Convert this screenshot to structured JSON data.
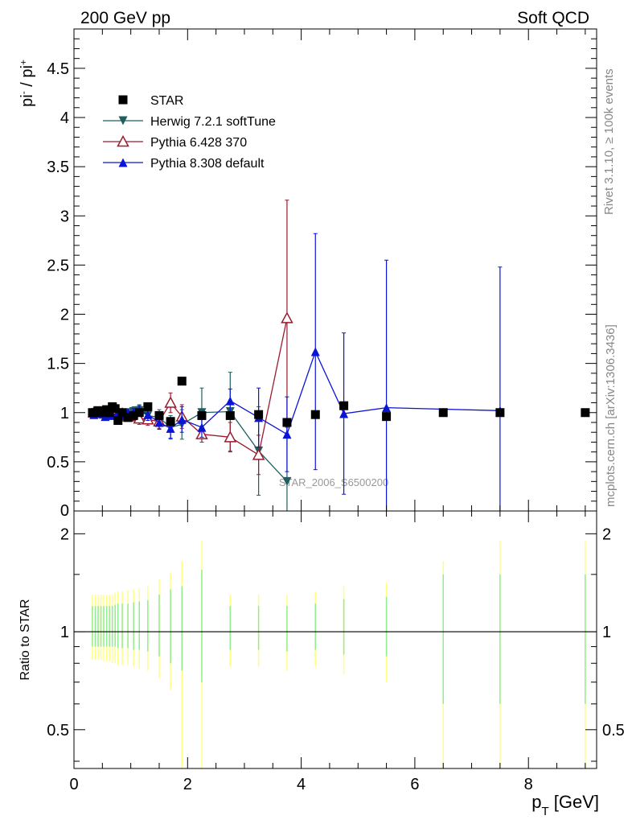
{
  "header": {
    "left": "200 GeV pp",
    "right": "Soft QCD"
  },
  "side_labels": {
    "rivet": "Rivet 3.1.10, ≥ 100k events",
    "mcplots": "mcplots.cern.ch [arXiv:1306.3436]"
  },
  "watermark": "STAR_2006_S6500200",
  "colors": {
    "star": "#000000",
    "herwig": "#1f5f5f",
    "pythia6": "#9b1b2e",
    "pythia8": "#0a14d6",
    "ratio_band_yellow": "#ffff80",
    "ratio_band_green": "#90ee90"
  },
  "chart_data": [
    {
      "type": "scatter",
      "ylabel": "pi- / pi+",
      "xlim": [
        0,
        9.2
      ],
      "ylim": [
        0,
        4.9
      ],
      "yticks": [
        "0.5",
        "1",
        "1.5",
        "2",
        "2.5",
        "3",
        "3.5",
        "4",
        "4.5"
      ],
      "ytick_values": [
        0.5,
        1,
        1.5,
        2,
        2.5,
        3,
        3.5,
        4,
        4.5
      ],
      "bottom_tick_label": "0",
      "legend_position": "top-left",
      "series": [
        {
          "name": "STAR",
          "marker": "square",
          "x": [
            0.325,
            0.375,
            0.425,
            0.475,
            0.525,
            0.575,
            0.625,
            0.675,
            0.725,
            0.775,
            0.85,
            0.95,
            1.05,
            1.15,
            1.3,
            1.5,
            1.7,
            1.9,
            2.25,
            2.75,
            3.25,
            3.75,
            4.25,
            4.75,
            5.5,
            6.5,
            7.5,
            9.0
          ],
          "y": [
            1.0,
            1.0,
            1.02,
            1.01,
            1.0,
            1.03,
            1.0,
            1.06,
            1.04,
            0.92,
            1.0,
            0.95,
            0.97,
            1.0,
            1.06,
            0.97,
            0.91,
            1.32,
            0.97,
            0.97,
            0.98,
            0.9,
            0.98,
            1.07,
            0.96,
            1.0,
            1.0,
            1.0
          ],
          "yerr": [
            0.01,
            0.01,
            0.01,
            0.01,
            0.01,
            0.01,
            0.01,
            0.01,
            0.01,
            0.01,
            0.01,
            0.01,
            0.01,
            0.01,
            0.01,
            0.01,
            0.01,
            0.01,
            0.01,
            0.01,
            0.01,
            0.01,
            0.01,
            0.01,
            0.01,
            0.01,
            0.01,
            0.01
          ]
        },
        {
          "name": "Herwig 7.2.1 softTune",
          "marker": "triangle-down",
          "x": [
            0.35,
            0.45,
            0.55,
            0.65,
            0.75,
            0.85,
            0.95,
            1.05,
            1.15,
            1.3,
            1.5,
            1.7,
            1.9,
            2.25,
            2.75,
            3.25,
            3.75
          ],
          "y": [
            0.99,
            0.98,
            0.99,
            0.99,
            1.0,
            0.98,
            0.99,
            1.01,
            1.02,
            0.97,
            0.95,
            0.85,
            0.88,
            1.0,
            1.01,
            0.61,
            0.3
          ],
          "yerr": [
            0.02,
            0.02,
            0.02,
            0.03,
            0.03,
            0.03,
            0.04,
            0.05,
            0.06,
            0.07,
            0.08,
            0.12,
            0.15,
            0.25,
            0.4,
            0.45,
            0.55
          ]
        },
        {
          "name": "Pythia 6.428 370",
          "marker": "triangle-up-open",
          "x": [
            0.35,
            0.45,
            0.55,
            0.65,
            0.75,
            0.85,
            0.95,
            1.05,
            1.15,
            1.3,
            1.5,
            1.7,
            1.9,
            2.25,
            2.75,
            3.25,
            3.75
          ],
          "y": [
            1.0,
            1.0,
            0.99,
            1.02,
            1.03,
            0.99,
            0.96,
            0.97,
            0.94,
            0.93,
            0.91,
            1.1,
            0.96,
            0.78,
            0.75,
            0.57,
            1.96
          ],
          "yerr": [
            0.02,
            0.02,
            0.03,
            0.03,
            0.03,
            0.04,
            0.04,
            0.05,
            0.06,
            0.06,
            0.07,
            0.1,
            0.12,
            0.08,
            0.15,
            0.2,
            1.2
          ]
        },
        {
          "name": "Pythia 8.308 default",
          "marker": "triangle-up",
          "x": [
            0.35,
            0.45,
            0.55,
            0.65,
            0.75,
            0.85,
            0.95,
            1.05,
            1.15,
            1.3,
            1.5,
            1.7,
            1.9,
            2.25,
            2.75,
            3.25,
            3.75,
            4.25,
            4.75,
            5.5,
            7.5
          ],
          "y": [
            0.98,
            0.99,
            0.96,
            0.97,
            0.98,
            0.97,
            1.0,
            1.0,
            1.02,
            0.98,
            0.9,
            0.84,
            0.93,
            0.85,
            1.12,
            0.95,
            0.78,
            1.62,
            0.99,
            1.05,
            1.02
          ],
          "yerr": [
            0.02,
            0.02,
            0.02,
            0.03,
            0.03,
            0.03,
            0.04,
            0.04,
            0.05,
            0.06,
            0.07,
            0.1,
            0.13,
            0.1,
            0.12,
            0.3,
            0.38,
            1.2,
            0.82,
            1.5,
            1.46
          ]
        }
      ]
    },
    {
      "type": "scatter",
      "ylabel": "Ratio to STAR",
      "xlabel": "p_T [GeV]",
      "xlim": [
        0,
        9.2
      ],
      "ylim": [
        0.38,
        2.35
      ],
      "log_y": true,
      "xticks": [
        "0",
        "2",
        "4",
        "6",
        "8"
      ],
      "xtick_values": [
        0,
        2,
        4,
        6,
        8
      ],
      "yticks": [
        "0.5",
        "1",
        "2"
      ],
      "ytick_values": [
        0.5,
        1,
        2
      ],
      "reference_line": 1,
      "bands": {
        "x": [
          0.325,
          0.375,
          0.425,
          0.475,
          0.525,
          0.575,
          0.625,
          0.675,
          0.725,
          0.775,
          0.85,
          0.95,
          1.05,
          1.15,
          1.3,
          1.5,
          1.7,
          1.9,
          2.25,
          2.75,
          3.25,
          3.75,
          4.25,
          4.75,
          5.5,
          6.5,
          7.5,
          9.0
        ],
        "yellow": [
          [
            0.82,
            1.3
          ],
          [
            0.82,
            1.3
          ],
          [
            0.82,
            1.3
          ],
          [
            0.82,
            1.3
          ],
          [
            0.81,
            1.3
          ],
          [
            0.81,
            1.3
          ],
          [
            0.81,
            1.3
          ],
          [
            0.8,
            1.3
          ],
          [
            0.8,
            1.32
          ],
          [
            0.79,
            1.33
          ],
          [
            0.79,
            1.33
          ],
          [
            0.79,
            1.34
          ],
          [
            0.78,
            1.35
          ],
          [
            0.77,
            1.36
          ],
          [
            0.76,
            1.38
          ],
          [
            0.72,
            1.45
          ],
          [
            0.66,
            1.52
          ],
          [
            0.38,
            1.65
          ],
          [
            0.38,
            1.9
          ],
          [
            0.78,
            1.3
          ],
          [
            0.78,
            1.3
          ],
          [
            0.76,
            1.3
          ],
          [
            0.78,
            1.33
          ],
          [
            0.74,
            1.38
          ],
          [
            0.7,
            1.42
          ],
          [
            0.38,
            1.65
          ],
          [
            0.38,
            1.9
          ],
          [
            0.38,
            1.9
          ]
        ],
        "green": [
          [
            0.9,
            1.2
          ],
          [
            0.9,
            1.2
          ],
          [
            0.9,
            1.2
          ],
          [
            0.9,
            1.2
          ],
          [
            0.9,
            1.2
          ],
          [
            0.9,
            1.2
          ],
          [
            0.9,
            1.2
          ],
          [
            0.9,
            1.2
          ],
          [
            0.9,
            1.21
          ],
          [
            0.89,
            1.22
          ],
          [
            0.89,
            1.22
          ],
          [
            0.89,
            1.22
          ],
          [
            0.88,
            1.23
          ],
          [
            0.88,
            1.24
          ],
          [
            0.87,
            1.25
          ],
          [
            0.84,
            1.3
          ],
          [
            0.8,
            1.35
          ],
          [
            0.76,
            1.38
          ],
          [
            0.7,
            1.55
          ],
          [
            0.88,
            1.2
          ],
          [
            0.88,
            1.2
          ],
          [
            0.87,
            1.2
          ],
          [
            0.88,
            1.22
          ],
          [
            0.85,
            1.26
          ],
          [
            0.84,
            1.28
          ],
          [
            0.6,
            1.5
          ],
          [
            0.6,
            1.5
          ],
          [
            0.6,
            1.5
          ]
        ]
      }
    }
  ]
}
